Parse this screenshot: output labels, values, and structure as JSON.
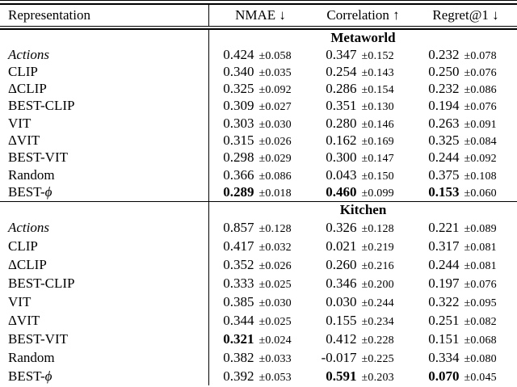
{
  "colors": {
    "text": "#000000",
    "rule": "#000000",
    "background": "#ffffff"
  },
  "table": {
    "columns": [
      "Representation",
      "NMAE ↓",
      "Correlation ↑",
      "Regret@1 ↓"
    ],
    "sections": [
      {
        "title": "Metaworld",
        "rows": [
          {
            "label": "",
            "label_italic": "Actions",
            "cells": [
              {
                "value": "0.424",
                "err": "±0.058",
                "bold": false
              },
              {
                "value": "0.347",
                "err": "±0.152",
                "bold": false
              },
              {
                "value": "0.232",
                "err": "±0.078",
                "bold": false
              }
            ]
          },
          {
            "label": "CLIP",
            "label_italic": "",
            "cells": [
              {
                "value": "0.340",
                "err": "±0.035",
                "bold": false
              },
              {
                "value": "0.254",
                "err": "±0.143",
                "bold": false
              },
              {
                "value": "0.250",
                "err": "±0.076",
                "bold": false
              }
            ]
          },
          {
            "label": "ΔCLIP",
            "label_italic": "",
            "cells": [
              {
                "value": "0.325",
                "err": "±0.092",
                "bold": false
              },
              {
                "value": "0.286",
                "err": "±0.154",
                "bold": false
              },
              {
                "value": "0.232",
                "err": "±0.086",
                "bold": false
              }
            ]
          },
          {
            "label": "BEST-CLIP",
            "label_italic": "",
            "cells": [
              {
                "value": "0.309",
                "err": "±0.027",
                "bold": false
              },
              {
                "value": "0.351",
                "err": "±0.130",
                "bold": false
              },
              {
                "value": "0.194",
                "err": "±0.076",
                "bold": false
              }
            ]
          },
          {
            "label": "VIT",
            "label_italic": "",
            "cells": [
              {
                "value": "0.303",
                "err": "±0.030",
                "bold": false
              },
              {
                "value": "0.280",
                "err": "±0.146",
                "bold": false
              },
              {
                "value": "0.263",
                "err": "±0.091",
                "bold": false
              }
            ]
          },
          {
            "label": "ΔVIT",
            "label_italic": "",
            "cells": [
              {
                "value": "0.315",
                "err": "±0.026",
                "bold": false
              },
              {
                "value": "0.162",
                "err": "±0.169",
                "bold": false
              },
              {
                "value": "0.325",
                "err": "±0.084",
                "bold": false
              }
            ]
          },
          {
            "label": "BEST-VIT",
            "label_italic": "",
            "cells": [
              {
                "value": "0.298",
                "err": "±0.029",
                "bold": false
              },
              {
                "value": "0.300",
                "err": "±0.147",
                "bold": false
              },
              {
                "value": "0.244",
                "err": "±0.092",
                "bold": false
              }
            ]
          },
          {
            "label": "Random",
            "label_italic": "",
            "cells": [
              {
                "value": "0.366",
                "err": "±0.086",
                "bold": false
              },
              {
                "value": "0.043",
                "err": "±0.150",
                "bold": false
              },
              {
                "value": "0.375",
                "err": "±0.108",
                "bold": false
              }
            ]
          },
          {
            "label": "BEST-",
            "label_italic": "ϕ",
            "cells": [
              {
                "value": "0.289",
                "err": "±0.018",
                "bold": true
              },
              {
                "value": "0.460",
                "err": "±0.099",
                "bold": true
              },
              {
                "value": "0.153",
                "err": "±0.060",
                "bold": true
              }
            ]
          }
        ]
      },
      {
        "title": "Kitchen",
        "rows": [
          {
            "label": "",
            "label_italic": "Actions",
            "cells": [
              {
                "value": "0.857",
                "err": "±0.128",
                "bold": false
              },
              {
                "value": "0.326",
                "err": "±0.128",
                "bold": false
              },
              {
                "value": "0.221",
                "err": "±0.089",
                "bold": false
              }
            ]
          },
          {
            "label": "CLIP",
            "label_italic": "",
            "cells": [
              {
                "value": "0.417",
                "err": "±0.032",
                "bold": false
              },
              {
                "value": "0.021",
                "err": "±0.219",
                "bold": false
              },
              {
                "value": "0.317",
                "err": "±0.081",
                "bold": false
              }
            ]
          },
          {
            "label": "ΔCLIP",
            "label_italic": "",
            "cells": [
              {
                "value": "0.352",
                "err": "±0.026",
                "bold": false
              },
              {
                "value": "0.260",
                "err": "±0.216",
                "bold": false
              },
              {
                "value": "0.244",
                "err": "±0.081",
                "bold": false
              }
            ]
          },
          {
            "label": "BEST-CLIP",
            "label_italic": "",
            "cells": [
              {
                "value": "0.333",
                "err": "±0.025",
                "bold": false
              },
              {
                "value": "0.346",
                "err": "±0.200",
                "bold": false
              },
              {
                "value": "0.197",
                "err": "±0.076",
                "bold": false
              }
            ]
          },
          {
            "label": "VIT",
            "label_italic": "",
            "cells": [
              {
                "value": "0.385",
                "err": "±0.030",
                "bold": false
              },
              {
                "value": "0.030",
                "err": "±0.244",
                "bold": false
              },
              {
                "value": "0.322",
                "err": "±0.095",
                "bold": false
              }
            ]
          },
          {
            "label": "ΔVIT",
            "label_italic": "",
            "cells": [
              {
                "value": "0.344",
                "err": "±0.025",
                "bold": false
              },
              {
                "value": "0.155",
                "err": "±0.234",
                "bold": false
              },
              {
                "value": "0.251",
                "err": "±0.082",
                "bold": false
              }
            ]
          },
          {
            "label": "BEST-VIT",
            "label_italic": "",
            "cells": [
              {
                "value": "0.321",
                "err": "±0.024",
                "bold": true
              },
              {
                "value": "0.412",
                "err": "±0.228",
                "bold": false
              },
              {
                "value": "0.151",
                "err": "±0.068",
                "bold": false
              }
            ]
          },
          {
            "label": "Random",
            "label_italic": "",
            "cells": [
              {
                "value": "0.382",
                "err": "±0.033",
                "bold": false
              },
              {
                "value": "-0.017",
                "err": "±0.225",
                "bold": false
              },
              {
                "value": "0.334",
                "err": "±0.080",
                "bold": false
              }
            ]
          },
          {
            "label": "BEST-",
            "label_italic": "ϕ",
            "cells": [
              {
                "value": "0.392",
                "err": "±0.053",
                "bold": false
              },
              {
                "value": "0.591",
                "err": "±0.203",
                "bold": true
              },
              {
                "value": "0.070",
                "err": "±0.045",
                "bold": true
              }
            ]
          }
        ]
      }
    ]
  }
}
